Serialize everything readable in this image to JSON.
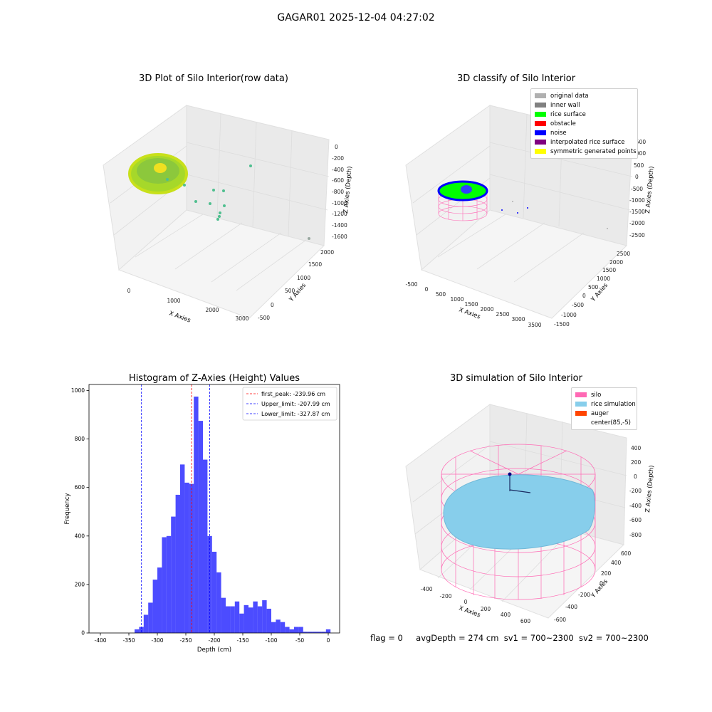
{
  "suptitle": "GAGAR01 2025-12-04 04:27:02",
  "panels": {
    "raw": {
      "title": "3D Plot of Silo Interior(row data)",
      "xlabel": "X Axies",
      "ylabel": "Y Axies",
      "zlabel": "Z Axies (Depth)",
      "xticks": [
        "0",
        "1000",
        "2000",
        "3000"
      ],
      "yticks": [
        "-500",
        "0",
        "500",
        "1000",
        "1500",
        "2000"
      ],
      "zticks": [
        "0",
        "-200",
        "-400",
        "-600",
        "-800",
        "-1000",
        "-1200",
        "-1400",
        "-1600"
      ]
    },
    "classify": {
      "title": "3D classify of Silo Interior",
      "xlabel": "X Axies",
      "ylabel": "Y Axies",
      "zlabel": "Z Axies (Depth)",
      "xticks": [
        "-500",
        "0",
        "500",
        "1000",
        "1500",
        "2000",
        "2500",
        "3000",
        "3500"
      ],
      "yticks": [
        "-1500",
        "-1000",
        "-500",
        "0",
        "500",
        "1000",
        "1500",
        "2000",
        "2500"
      ],
      "zticks": [
        "1500",
        "1000",
        "500",
        "0",
        "-500",
        "-1000",
        "-1500",
        "-2000",
        "-2500"
      ],
      "legend": [
        {
          "label": "original data",
          "color": "#b0b0b0"
        },
        {
          "label": "inner wall",
          "color": "#808080"
        },
        {
          "label": "rice surface",
          "color": "#00ff00"
        },
        {
          "label": "obstacle",
          "color": "#ff0000"
        },
        {
          "label": "noise",
          "color": "#0000ff"
        },
        {
          "label": "interpolated rice surface",
          "color": "#800080"
        },
        {
          "label": "symmetric generated points",
          "color": "#ffff00"
        }
      ]
    },
    "simulation": {
      "title": "3D simulation of Silo Interior",
      "xlabel": "X Axies",
      "ylabel": "Y Axies",
      "zlabel": "Z Axies (Depth)",
      "xticks": [
        "-400",
        "-200",
        "0",
        "200",
        "400",
        "600"
      ],
      "yticks": [
        "-600",
        "-400",
        "-200",
        "0",
        "200",
        "400",
        "600"
      ],
      "zticks": [
        "400",
        "200",
        "0",
        "-200",
        "-400",
        "-600",
        "-800"
      ],
      "legend": [
        {
          "label": "silo",
          "color": "#ff69b4"
        },
        {
          "label": "rice simulation",
          "color": "#87ceeb"
        },
        {
          "label": "auger",
          "color": "#ff4500"
        },
        {
          "label": "center(85,-5)",
          "color": "#ffffff"
        }
      ]
    }
  },
  "status": {
    "flag": "flag = 0",
    "avg": "avgDepth = 274 cm",
    "sv1": "sv1 = 700~2300",
    "sv2": "sv2 = 700~2300"
  },
  "chart_data": {
    "type": "bar",
    "title": "Histogram of Z-Axies (Height) Values",
    "xlabel": "Depth (cm)",
    "ylabel": "Frequency",
    "xlim": [
      -420,
      20
    ],
    "ylim": [
      0,
      1025
    ],
    "xticks": [
      -400,
      -350,
      -300,
      -250,
      -200,
      -150,
      -100,
      -50,
      0
    ],
    "yticks": [
      0,
      200,
      400,
      600,
      800,
      1000
    ],
    "bar_color": "#0000ff",
    "bin_width": 8.0,
    "bins_start": [
      -340,
      -332,
      -324,
      -316,
      -308,
      -300,
      -292,
      -284,
      -276,
      -268,
      -260,
      -252,
      -244,
      -236,
      -228,
      -220,
      -212,
      -204,
      -196,
      -188,
      -180,
      -172,
      -164,
      -156,
      -148,
      -140,
      -132,
      -124,
      -116,
      -108,
      -100,
      -92,
      -84,
      -76,
      -68,
      -60,
      -52,
      -44,
      -36,
      -28,
      -20,
      -12,
      -4
    ],
    "values": [
      15,
      25,
      75,
      125,
      220,
      270,
      395,
      400,
      480,
      570,
      695,
      620,
      615,
      975,
      875,
      715,
      400,
      335,
      250,
      145,
      110,
      110,
      130,
      80,
      115,
      105,
      130,
      110,
      135,
      100,
      45,
      55,
      45,
      25,
      15,
      25,
      25,
      5,
      5,
      5,
      5,
      5,
      15
    ],
    "vlines": [
      {
        "label": "first_peak: -239.96 cm",
        "x": -239.96,
        "color": "#ff0000"
      },
      {
        "label": "Upper_limit: -207.99 cm",
        "x": -207.99,
        "color": "#0000ff"
      },
      {
        "label": "Lower_limit: -327.87 cm",
        "x": -327.87,
        "color": "#0000ff"
      }
    ],
    "legend_loc": "upper right"
  }
}
